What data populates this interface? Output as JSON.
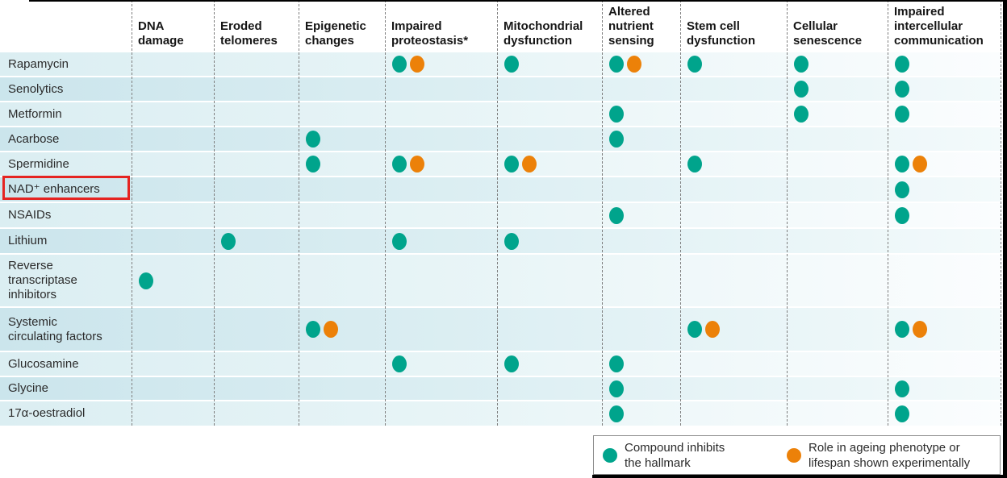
{
  "colors": {
    "teal": "#00a48c",
    "orange": "#ec8109",
    "highlight_red": "#e52421"
  },
  "legend": {
    "items": [
      {
        "mark": "T",
        "label": "Compound inhibits\nthe hallmark"
      },
      {
        "mark": "O",
        "label": "Role in ageing phenotype or\nlifespan shown experimentally"
      }
    ]
  },
  "chart_data": {
    "type": "table",
    "columns": [
      {
        "id": "dna_damage",
        "label": "DNA damage",
        "display": "DNA\ndamage"
      },
      {
        "id": "eroded_telomeres",
        "label": "Eroded telomeres",
        "display": "Eroded\ntelomeres"
      },
      {
        "id": "epigenetic_changes",
        "label": "Epigenetic changes",
        "display": "Epigenetic\nchanges"
      },
      {
        "id": "impaired_proteostasis",
        "label": "Impaired proteostasis*",
        "display": "Impaired\nproteostasis*"
      },
      {
        "id": "mitochondrial_dysfunction",
        "label": "Mitochondrial dysfunction",
        "display": "Mitochondrial\ndysfunction"
      },
      {
        "id": "altered_nutrient_sensing",
        "label": "Altered nutrient sensing",
        "display": "Altered\nnutrient\nsensing"
      },
      {
        "id": "stem_cell_dysfunction",
        "label": "Stem cell dysfunction",
        "display": "Stem cell\ndysfunction"
      },
      {
        "id": "cellular_senescence",
        "label": "Cellular senescence",
        "display": "Cellular\nsenescence"
      },
      {
        "id": "impaired_intercellular_communication",
        "label": "Impaired intercellular communication",
        "display": "Impaired\nintercellular\ncommunication"
      }
    ],
    "rows": [
      {
        "label": "Rapamycin",
        "display": "Rapamycin",
        "marks": [
          "",
          "",
          "",
          "TO",
          "T",
          "TO",
          "T",
          "T",
          "T"
        ]
      },
      {
        "label": "Senolytics",
        "display": "Senolytics",
        "marks": [
          "",
          "",
          "",
          "",
          "",
          "",
          "",
          "T",
          "T"
        ]
      },
      {
        "label": "Metformin",
        "display": "Metformin",
        "marks": [
          "",
          "",
          "",
          "",
          "",
          "T",
          "",
          "T",
          "T"
        ]
      },
      {
        "label": "Acarbose",
        "display": "Acarbose",
        "marks": [
          "",
          "",
          "T",
          "",
          "",
          "T",
          "",
          "",
          ""
        ]
      },
      {
        "label": "Spermidine",
        "display": "Spermidine",
        "marks": [
          "",
          "",
          "T",
          "TO",
          "TO",
          "",
          "T",
          "",
          "TO"
        ]
      },
      {
        "label": "NAD⁺ enhancers",
        "display": "NAD⁺ enhancers",
        "marks": [
          "",
          "",
          "",
          "",
          "",
          "",
          "",
          "",
          "T"
        ]
      },
      {
        "label": "NSAIDs",
        "display": "NSAIDs",
        "marks": [
          "",
          "",
          "",
          "",
          "",
          "T",
          "",
          "",
          "T"
        ]
      },
      {
        "label": "Lithium",
        "display": "Lithium",
        "marks": [
          "",
          "T",
          "",
          "T",
          "T",
          "",
          "",
          "",
          ""
        ]
      },
      {
        "label": "Reverse transcriptase inhibitors",
        "display": "Reverse\ntranscriptase\ninhibitors",
        "marks": [
          "T",
          "",
          "",
          "",
          "",
          "",
          "",
          "",
          ""
        ]
      },
      {
        "label": "Systemic circulating factors",
        "display": "Systemic\ncirculating factors",
        "marks": [
          "",
          "",
          "TO",
          "",
          "",
          "",
          "TO",
          "",
          "TO"
        ]
      },
      {
        "label": "Glucosamine",
        "display": "Glucosamine",
        "marks": [
          "",
          "",
          "",
          "T",
          "T",
          "T",
          "",
          "",
          ""
        ]
      },
      {
        "label": "Glycine",
        "display": "Glycine",
        "marks": [
          "",
          "",
          "",
          "",
          "",
          "T",
          "",
          "",
          "T"
        ]
      },
      {
        "label": "17α-oestradiol",
        "display": "17α-oestradiol",
        "marks": [
          "",
          "",
          "",
          "",
          "",
          "T",
          "",
          "",
          "T"
        ]
      }
    ],
    "mark_meanings": {
      "T": "Compound inhibits the hallmark",
      "O": "Role in ageing phenotype or lifespan shown experimentally"
    },
    "highlighted_row": "NAD⁺ enhancers",
    "legend_position": "bottom-right",
    "grid": "dashed-vertical"
  }
}
